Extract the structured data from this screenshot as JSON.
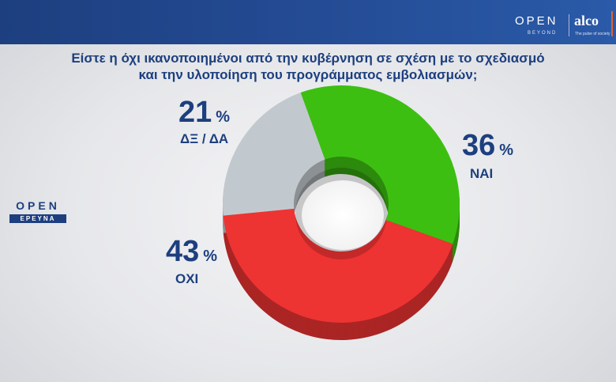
{
  "header": {
    "brand": "OPEN",
    "brand_sub": "BEYOND",
    "partner": "alco",
    "partner_tag": "The pulse of society",
    "colors": {
      "bar": "#1d3f7f",
      "accent": "#e8622d"
    }
  },
  "side_logo": {
    "top": "OPEN",
    "bottom": "ΕΡΕΥΝΑ"
  },
  "chart_data": {
    "type": "pie",
    "title": "Είστε η όχι ικανοποιημένοι από την κυβέρνηση σε σχέση με το σχεδιασμό και την υλοποίηση του προγράμματος εμβολιασμών;",
    "title_lines": [
      "Είστε η όχι ικανοποιημένοι από την κυβέρνηση σε σχέση με το σχεδιασμό",
      "και την υλοποίηση του προγράμματος εμβολιασμών;"
    ],
    "unit": "%",
    "slices": [
      {
        "label": "ΝΑΙ",
        "value": 36,
        "color": "#3dbf12"
      },
      {
        "label": "ΟΧΙ",
        "value": 43,
        "color": "#ee3333"
      },
      {
        "label": "ΔΞ / ΔΑ",
        "value": 21,
        "color": "#c2c9ce"
      }
    ]
  }
}
